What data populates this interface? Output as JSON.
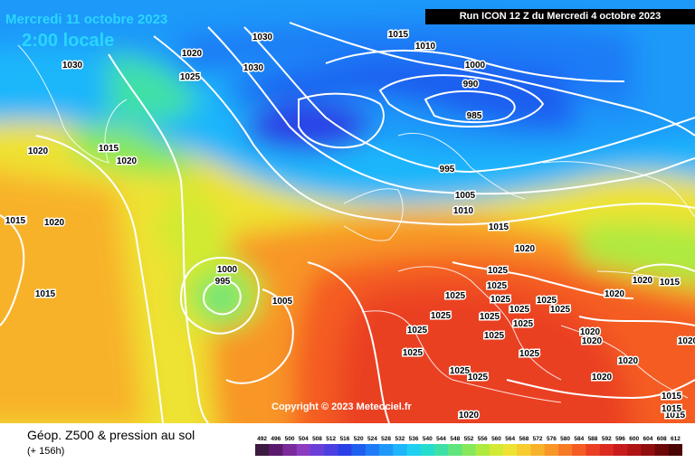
{
  "header": {
    "date": "Mercredi 11 octobre 2023",
    "local_time": "2:00 locale",
    "run": "Run ICON 12 Z du Mercredi 4 octobre 2023"
  },
  "copyright": "Copyright © 2023 Meteociel.fr",
  "legend": {
    "title": "Géop. Z500 & pression au sol",
    "subtitle": "(+ 156h)",
    "units_values": [
      "492",
      "496",
      "500",
      "504",
      "508",
      "512",
      "516",
      "520",
      "524",
      "528",
      "532",
      "536",
      "540",
      "544",
      "548",
      "552",
      "556",
      "560",
      "564",
      "568",
      "572",
      "576",
      "580",
      "584",
      "588",
      "592",
      "596",
      "600",
      "604",
      "608",
      "612"
    ],
    "colors": [
      "#3d1a40",
      "#5c1a6e",
      "#7a2a9a",
      "#8c3cc0",
      "#6a3fd8",
      "#4b3fe0",
      "#2a40e6",
      "#1f5ff0",
      "#1f7cf6",
      "#1f99f9",
      "#1fb6fb",
      "#1fd0f0",
      "#26dccf",
      "#3fe0a8",
      "#5fe47e",
      "#86e85a",
      "#aeea3f",
      "#d2ea33",
      "#eee233",
      "#f7cc2e",
      "#f8b22a",
      "#f89627",
      "#f77a25",
      "#f45c24",
      "#ea3f22",
      "#dc2a20",
      "#c81c1c",
      "#b01414",
      "#920d0d",
      "#6d0808",
      "#4a0404"
    ]
  },
  "isobars": [
    {
      "value": "1030"
    },
    {
      "value": "1030"
    },
    {
      "value": "1025"
    },
    {
      "value": "1020"
    },
    {
      "value": "1030"
    },
    {
      "value": "1015"
    },
    {
      "value": "1010"
    },
    {
      "value": "1000"
    },
    {
      "value": "990"
    },
    {
      "value": "985"
    },
    {
      "value": "995"
    },
    {
      "value": "1005"
    },
    {
      "value": "1010"
    },
    {
      "value": "1015"
    },
    {
      "value": "1020"
    },
    {
      "value": "1015"
    },
    {
      "value": "1015"
    },
    {
      "value": "1020"
    },
    {
      "value": "1020"
    },
    {
      "value": "1020"
    },
    {
      "value": "1015"
    },
    {
      "value": "1015"
    },
    {
      "value": "1000"
    },
    {
      "value": "995"
    },
    {
      "value": "1005"
    },
    {
      "value": "1025"
    },
    {
      "value": "1025"
    },
    {
      "value": "1025"
    },
    {
      "value": "1025"
    },
    {
      "value": "1025"
    },
    {
      "value": "1025"
    },
    {
      "value": "1025"
    },
    {
      "value": "1025"
    },
    {
      "value": "1025"
    },
    {
      "value": "1025"
    },
    {
      "value": "1025"
    },
    {
      "value": "1025"
    },
    {
      "value": "1025"
    },
    {
      "value": "1020"
    },
    {
      "value": "1020"
    },
    {
      "value": "1020"
    },
    {
      "value": "1020"
    },
    {
      "value": "1020"
    },
    {
      "value": "1015"
    },
    {
      "value": "1015"
    },
    {
      "value": "1015"
    },
    {
      "value": "1025"
    },
    {
      "value": "1020"
    },
    {
      "value": "1020"
    },
    {
      "value": "1025"
    },
    {
      "value": "1025"
    },
    {
      "value": "1020"
    },
    {
      "value": "1015"
    }
  ]
}
